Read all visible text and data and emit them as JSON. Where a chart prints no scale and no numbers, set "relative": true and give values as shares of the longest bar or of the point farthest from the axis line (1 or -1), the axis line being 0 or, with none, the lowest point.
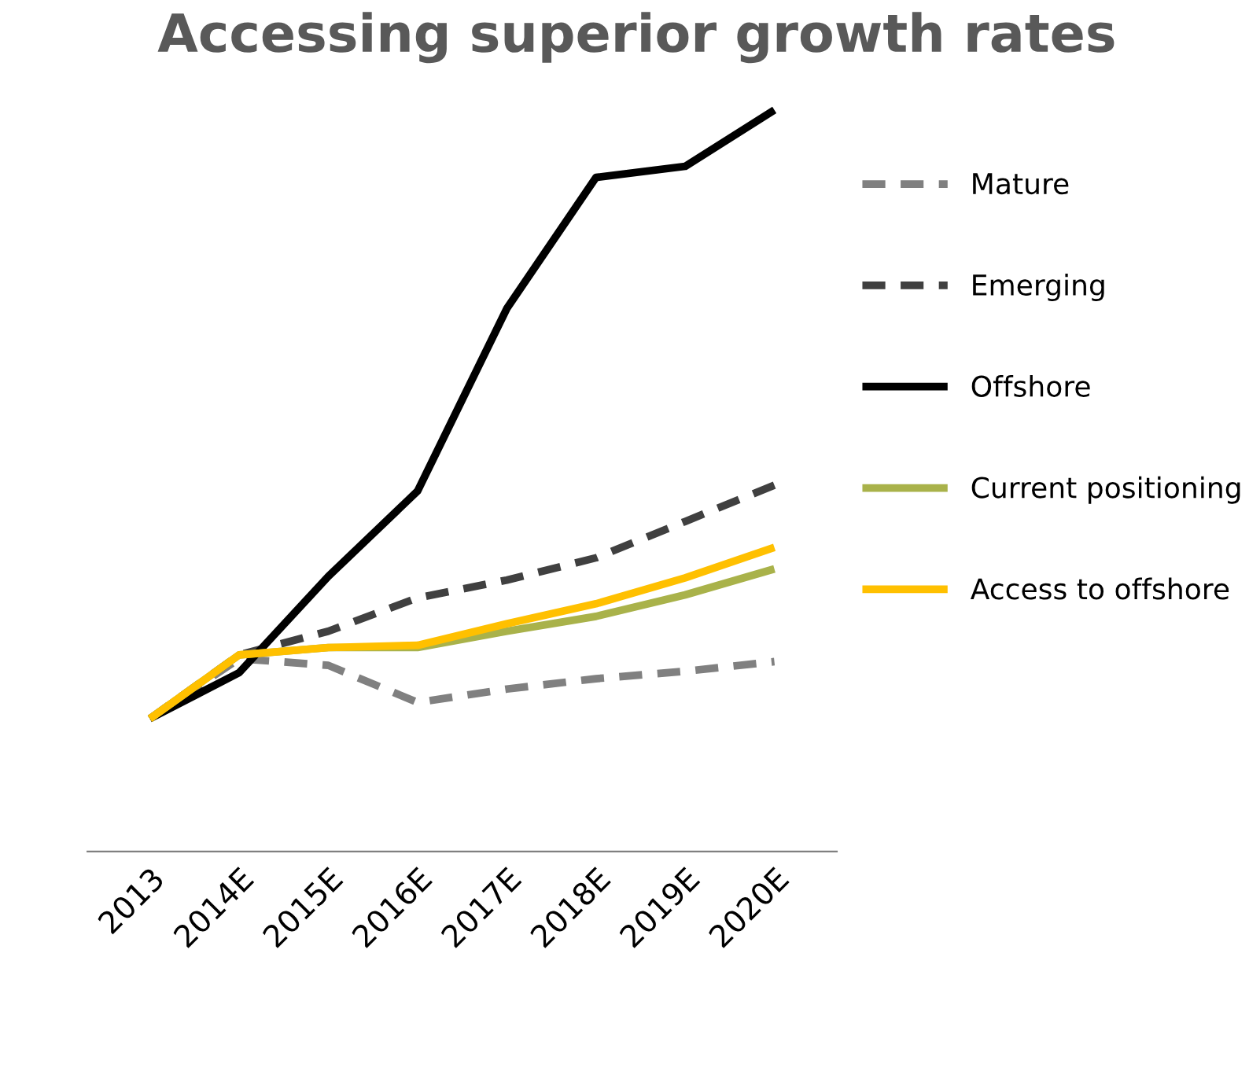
{
  "chart_data": {
    "type": "line",
    "title": "Accessing superior growth rates",
    "relative": true,
    "categories": [
      "2013",
      "2014E",
      "2015E",
      "2016E",
      "2017E",
      "2018E",
      "2019E",
      "2020E"
    ],
    "series": [
      {
        "name": "Mature",
        "color": "#808080",
        "line_style": "dashed",
        "values": [
          0.179,
          0.26,
          0.251,
          0.201,
          0.219,
          0.233,
          0.243,
          0.256
        ]
      },
      {
        "name": "Emerging",
        "color": "#404040",
        "line_style": "dashed",
        "values": [
          0.179,
          0.265,
          0.297,
          0.342,
          0.366,
          0.396,
          0.445,
          0.494
        ]
      },
      {
        "name": "Offshore",
        "color": "#000000",
        "line_style": "solid",
        "values": [
          0.179,
          0.241,
          0.371,
          0.486,
          0.732,
          0.909,
          0.924,
          1
        ]
      },
      {
        "name": "Current positioning",
        "color": "#a9b24a",
        "line_style": "solid",
        "values": [
          0.179,
          0.265,
          0.275,
          0.275,
          0.297,
          0.317,
          0.346,
          0.381
        ]
      },
      {
        "name": "Access to offshore",
        "color": "#ffc000",
        "line_style": "solid",
        "values": [
          0.179,
          0.265,
          0.275,
          0.278,
          0.307,
          0.334,
          0.369,
          0.41
        ]
      }
    ],
    "legend": "right",
    "grid": false,
    "marker": "none"
  }
}
